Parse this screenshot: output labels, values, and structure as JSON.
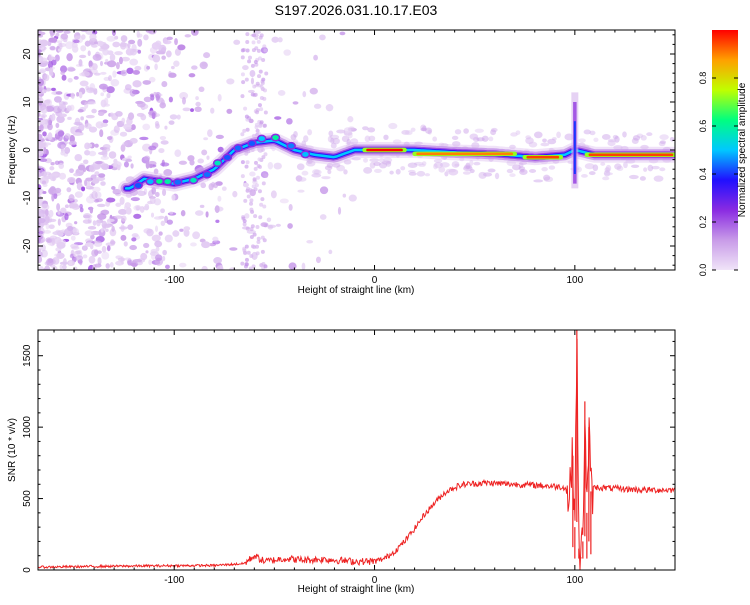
{
  "title": "S197.2026.031.10.17.E03",
  "chart_data": [
    {
      "type": "heatmap",
      "xlabel": "Height of straight line (km)",
      "ylabel": "Frequency (Hz)",
      "xlim": [
        -168,
        150
      ],
      "ylim": [
        -25,
        25
      ],
      "xticks": [
        -100,
        0,
        100
      ],
      "yticks": [
        -20,
        -10,
        0,
        10,
        20
      ],
      "colorbar": {
        "label": "Normalized spectral amplitude",
        "range": [
          0,
          1
        ],
        "ticks": [
          "0.0",
          "0.2",
          "0.4",
          "0.6",
          "0.8"
        ],
        "colors": [
          "#f0e4f8",
          "#c89be8",
          "#8a2be2",
          "#2010ff",
          "#00c8ff",
          "#00ff80",
          "#c0ff00",
          "#ffa000",
          "#ff0000"
        ]
      },
      "trace": [
        {
          "x": -122,
          "y": -8
        },
        {
          "x": -115,
          "y": -6
        },
        {
          "x": -100,
          "y": -7
        },
        {
          "x": -90,
          "y": -6
        },
        {
          "x": -80,
          "y": -4
        },
        {
          "x": -70,
          "y": 0
        },
        {
          "x": -60,
          "y": 1.5
        },
        {
          "x": -50,
          "y": 2
        },
        {
          "x": -40,
          "y": 0
        },
        {
          "x": -30,
          "y": -1
        },
        {
          "x": -20,
          "y": -1.5
        },
        {
          "x": -10,
          "y": 0
        },
        {
          "x": 0,
          "y": 0
        },
        {
          "x": 10,
          "y": 0
        },
        {
          "x": 20,
          "y": 0
        },
        {
          "x": 40,
          "y": -0.5
        },
        {
          "x": 60,
          "y": -0.8
        },
        {
          "x": 80,
          "y": -1.5
        },
        {
          "x": 95,
          "y": -1
        },
        {
          "x": 100,
          "y": 0
        },
        {
          "x": 110,
          "y": -1
        },
        {
          "x": 130,
          "y": -1
        },
        {
          "x": 150,
          "y": -1
        }
      ],
      "hotspots": [
        {
          "x1": -5,
          "x2": 15,
          "y": 0,
          "level": 1.0
        },
        {
          "x1": 20,
          "x2": 70,
          "y": -0.8,
          "level": 0.9
        },
        {
          "x1": 75,
          "x2": 93,
          "y": -1.5,
          "level": 0.95
        },
        {
          "x1": 106,
          "x2": 150,
          "y": -1,
          "level": 0.95
        }
      ],
      "spike": {
        "x": 100,
        "y_min": -8,
        "y_max": 12
      }
    },
    {
      "type": "line",
      "xlabel": "Height of straight line (km)",
      "ylabel": "SNR (10 * v/v)",
      "xlim": [
        -168,
        150
      ],
      "ylim": [
        0,
        1680
      ],
      "xticks": [
        -100,
        0,
        100
      ],
      "yticks": [
        0,
        500,
        1000,
        1500
      ],
      "color": "#ee2222",
      "series": [
        {
          "x": -168,
          "y": 20
        },
        {
          "x": -140,
          "y": 25
        },
        {
          "x": -120,
          "y": 28
        },
        {
          "x": -100,
          "y": 30
        },
        {
          "x": -80,
          "y": 32
        },
        {
          "x": -65,
          "y": 45
        },
        {
          "x": -60,
          "y": 100
        },
        {
          "x": -55,
          "y": 60
        },
        {
          "x": -45,
          "y": 80
        },
        {
          "x": -35,
          "y": 70
        },
        {
          "x": -25,
          "y": 75
        },
        {
          "x": -10,
          "y": 60
        },
        {
          "x": 0,
          "y": 60
        },
        {
          "x": 5,
          "y": 80
        },
        {
          "x": 10,
          "y": 130
        },
        {
          "x": 15,
          "y": 200
        },
        {
          "x": 20,
          "y": 290
        },
        {
          "x": 25,
          "y": 390
        },
        {
          "x": 30,
          "y": 470
        },
        {
          "x": 35,
          "y": 540
        },
        {
          "x": 40,
          "y": 580
        },
        {
          "x": 45,
          "y": 600
        },
        {
          "x": 55,
          "y": 610
        },
        {
          "x": 70,
          "y": 600
        },
        {
          "x": 85,
          "y": 590
        },
        {
          "x": 95,
          "y": 580
        },
        {
          "x": 97,
          "y": 500
        },
        {
          "x": 99,
          "y": 800
        },
        {
          "x": 100,
          "y": 300
        },
        {
          "x": 101,
          "y": 1680
        },
        {
          "x": 102,
          "y": 150
        },
        {
          "x": 103,
          "y": 90
        },
        {
          "x": 104,
          "y": 200
        },
        {
          "x": 105,
          "y": 1180
        },
        {
          "x": 106,
          "y": 400
        },
        {
          "x": 107,
          "y": 1000
        },
        {
          "x": 108,
          "y": 550
        },
        {
          "x": 110,
          "y": 580
        },
        {
          "x": 120,
          "y": 570
        },
        {
          "x": 135,
          "y": 560
        },
        {
          "x": 150,
          "y": 560
        }
      ]
    }
  ]
}
